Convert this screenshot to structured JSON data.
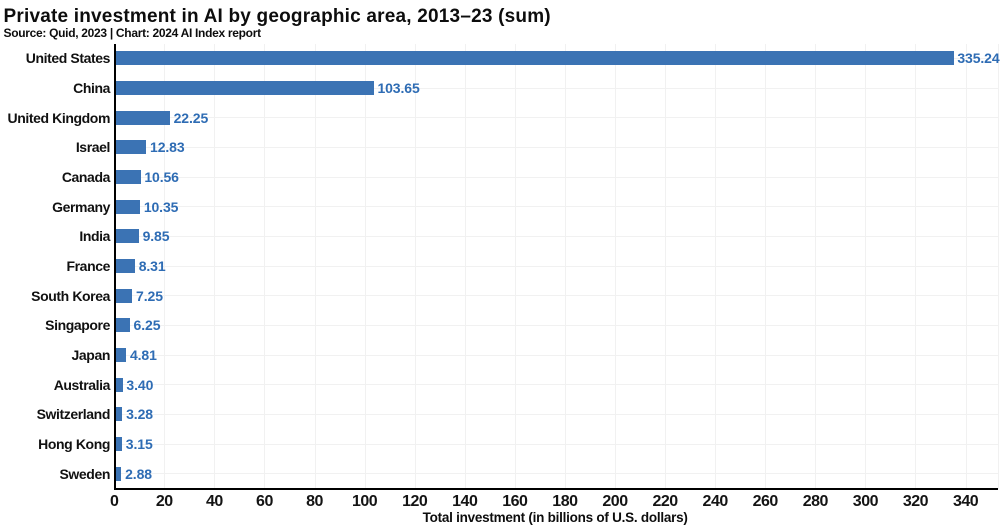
{
  "chart_data": {
    "type": "bar",
    "orientation": "horizontal",
    "title": "Private investment in AI by geographic area, 2013–23 (sum)",
    "subtitle": "Source: Quid, 2023 | Chart: 2024 AI Index report",
    "xlabel": "Total investment (in billions of U.S. dollars)",
    "categories": [
      "United States",
      "China",
      "United Kingdom",
      "Israel",
      "Canada",
      "Germany",
      "India",
      "France",
      "South Korea",
      "Singapore",
      "Japan",
      "Australia",
      "Switzerland",
      "Hong Kong",
      "Sweden"
    ],
    "values": [
      335.24,
      103.65,
      22.25,
      12.83,
      10.56,
      10.35,
      9.85,
      8.31,
      7.25,
      6.25,
      4.81,
      3.4,
      3.28,
      3.15,
      2.88
    ],
    "value_labels": [
      "335.24",
      "103.65",
      "22.25",
      "12.83",
      "10.56",
      "10.35",
      "9.85",
      "8.31",
      "7.25",
      "6.25",
      "4.81",
      "3.40",
      "3.28",
      "3.15",
      "2.88"
    ],
    "xlim": [
      0,
      353
    ],
    "xticks": [
      0,
      20,
      40,
      60,
      80,
      100,
      120,
      140,
      160,
      180,
      200,
      220,
      240,
      260,
      280,
      300,
      320,
      340
    ],
    "grid": true,
    "legend": false,
    "colors": {
      "bar": "#3b73b4",
      "value_label": "#2e6cb4",
      "axis": "#000000",
      "gridline": "#f1f1f1",
      "text": "#0d0d0d",
      "background": "#ffffff"
    }
  }
}
